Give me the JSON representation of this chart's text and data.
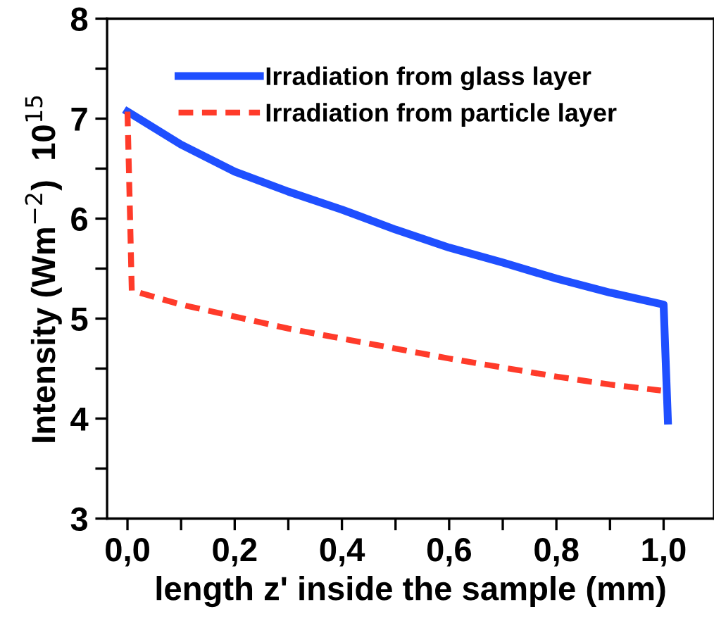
{
  "chart_data": {
    "type": "line",
    "xlabel": "length z' inside the sample (mm)",
    "ylabel": "Intensity (Wm$^{−2}$)  10$^{15}$",
    "xlim": [
      -0.038,
      1.094
    ],
    "ylim": [
      3,
      8
    ],
    "xticks": [
      {
        "value": 0,
        "label": "0,0"
      },
      {
        "value": 0.1,
        "label": null
      },
      {
        "value": 0.2,
        "label": "0,2"
      },
      {
        "value": 0.3,
        "label": null
      },
      {
        "value": 0.4,
        "label": "0,4"
      },
      {
        "value": 0.5,
        "label": null
      },
      {
        "value": 0.6,
        "label": "0,6"
      },
      {
        "value": 0.7,
        "label": null
      },
      {
        "value": 0.8,
        "label": "0,8"
      },
      {
        "value": 0.9,
        "label": null
      },
      {
        "value": 1.0,
        "label": "1,0"
      }
    ],
    "yticks": [
      3,
      {
        "value": 3.5,
        "label": null
      },
      4,
      {
        "value": 4.5,
        "label": null
      },
      5,
      {
        "value": 5.5,
        "label": null
      },
      6,
      {
        "value": 6.5,
        "label": null
      },
      7,
      {
        "value": 7.5,
        "label": null
      },
      8
    ],
    "grid": false,
    "legend": "top left",
    "series": [
      {
        "name": "Irradiation from glass layer",
        "color": "#1f4fff",
        "line_style": "solid",
        "x": [
          0.0,
          0.1,
          0.2,
          0.3,
          0.4,
          0.5,
          0.6,
          0.7,
          0.8,
          0.9,
          1.0,
          1.008
        ],
        "values": [
          7.07,
          6.74,
          6.47,
          6.27,
          6.09,
          5.89,
          5.71,
          5.56,
          5.4,
          5.26,
          5.14,
          3.98
        ]
      },
      {
        "name": "Irradiation from particle layer",
        "color": "#ff3b2a",
        "line_style": "dashed",
        "x": [
          0.0,
          0.004,
          0.008,
          0.1,
          0.2,
          0.3,
          0.4,
          0.5,
          0.6,
          0.7,
          0.8,
          0.9,
          0.995
        ],
        "values": [
          7.07,
          6.2,
          5.28,
          5.14,
          5.02,
          4.9,
          4.8,
          4.7,
          4.6,
          4.51,
          4.42,
          4.34,
          4.28
        ]
      }
    ]
  }
}
